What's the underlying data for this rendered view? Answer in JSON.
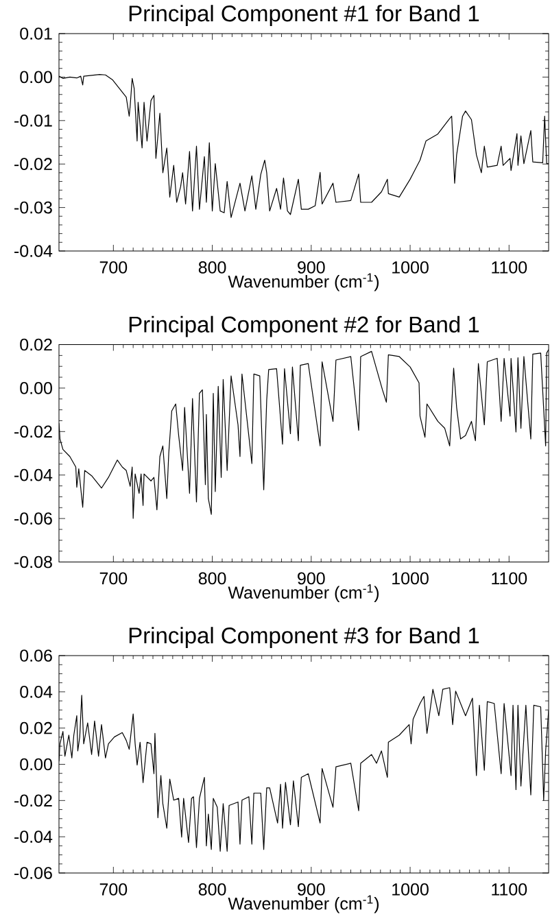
{
  "chart_data": [
    {
      "type": "line",
      "title": "Principal Component #1 for Band 1",
      "xlabel": "Wavenumber (cm$^{-1}$)",
      "color": "#000000",
      "xlim": [
        645,
        1140
      ],
      "ylim": [
        -0.04,
        0.01
      ],
      "xticks": [
        700,
        800,
        900,
        1000,
        1100
      ],
      "yticks": [
        {
          "value": -0.04,
          "label": "-0.04"
        },
        {
          "value": -0.03,
          "label": "-0.03"
        },
        {
          "value": -0.02,
          "label": "-0.02"
        },
        {
          "value": -0.01,
          "label": "-0.01"
        },
        {
          "value": 0,
          "label": "0.00"
        },
        {
          "value": 0.01,
          "label": "0.01"
        }
      ],
      "x": [
        645,
        649,
        656,
        663,
        667,
        669,
        670,
        678,
        686,
        692,
        699,
        706,
        713,
        716,
        717,
        719,
        721,
        724,
        725,
        729,
        731,
        734,
        738,
        741,
        743,
        747,
        750,
        754,
        757,
        761,
        764,
        768,
        770,
        773,
        777,
        780,
        784,
        787,
        792,
        794,
        797,
        800,
        803,
        808,
        812,
        815,
        819,
        828,
        833,
        840,
        844,
        849,
        853,
        855,
        858,
        865,
        869,
        872,
        876,
        879,
        887,
        890,
        897,
        904,
        909,
        911,
        922,
        925,
        940,
        948,
        950,
        961,
        971,
        977,
        978,
        989,
        1000,
        1010,
        1016,
        1028,
        1039,
        1042,
        1045,
        1047,
        1053,
        1056,
        1062,
        1067,
        1072,
        1075,
        1078,
        1088,
        1092,
        1094,
        1101,
        1102,
        1108,
        1109,
        1112,
        1115,
        1122,
        1124,
        1134,
        1136,
        1138,
        1140
      ],
      "values": [
        0.0002,
        -0.0003,
        0,
        -0.0002,
        0.0002,
        -0.0018,
        0.0002,
        0.0004,
        0.0006,
        0.0005,
        -0.0006,
        -0.0026,
        -0.0046,
        -0.009,
        -0.0066,
        -0.0003,
        -0.0026,
        -0.0147,
        -0.0058,
        -0.0163,
        -0.0058,
        -0.0147,
        -0.0054,
        -0.0042,
        -0.0187,
        -0.0083,
        -0.022,
        -0.0163,
        -0.0276,
        -0.0203,
        -0.0288,
        -0.0252,
        -0.022,
        -0.0292,
        -0.0171,
        -0.0308,
        -0.0159,
        -0.0304,
        -0.0183,
        -0.0288,
        -0.0151,
        -0.0308,
        -0.0199,
        -0.0308,
        -0.0312,
        -0.024,
        -0.0323,
        -0.0244,
        -0.0308,
        -0.0227,
        -0.0304,
        -0.0224,
        -0.0191,
        -0.022,
        -0.0308,
        -0.0256,
        -0.0304,
        -0.0232,
        -0.0308,
        -0.0316,
        -0.0235,
        -0.0304,
        -0.0304,
        -0.0296,
        -0.0219,
        -0.0292,
        -0.0244,
        -0.0288,
        -0.0284,
        -0.0223,
        -0.0288,
        -0.0288,
        -0.0264,
        -0.0235,
        -0.0268,
        -0.0276,
        -0.0235,
        -0.0191,
        -0.0147,
        -0.0131,
        -0.0098,
        -0.009,
        -0.0244,
        -0.0179,
        -0.009,
        -0.0078,
        -0.0098,
        -0.0179,
        -0.022,
        -0.0159,
        -0.0207,
        -0.0203,
        -0.0159,
        -0.0203,
        -0.0187,
        -0.0215,
        -0.013,
        -0.0203,
        -0.0135,
        -0.0199,
        -0.0123,
        -0.0195,
        -0.0197,
        -0.009,
        -0.0199,
        -0.0199
      ]
    },
    {
      "type": "line",
      "title": "Principal Component #2 for Band 1",
      "xlabel": "Wavenumber (cm$^{-1}$)",
      "color": "#000000",
      "xlim": [
        645,
        1140
      ],
      "ylim": [
        -0.08,
        0.02
      ],
      "xticks": [
        700,
        800,
        900,
        1000,
        1100
      ],
      "yticks": [
        {
          "value": -0.08,
          "label": "-0.08"
        },
        {
          "value": -0.06,
          "label": "-0.06"
        },
        {
          "value": -0.04,
          "label": "-0.04"
        },
        {
          "value": -0.02,
          "label": "-0.02"
        },
        {
          "value": 0,
          "label": "0.00"
        },
        {
          "value": 0.02,
          "label": "0.02"
        }
      ],
      "x": [
        645,
        646,
        649,
        656,
        662,
        663,
        665,
        669,
        671,
        678,
        688,
        695,
        704,
        709,
        713,
        717,
        719,
        720,
        722,
        726,
        728,
        730,
        731,
        738,
        741,
        744,
        747,
        750,
        754,
        756,
        759,
        763,
        766,
        770,
        772,
        777,
        780,
        784,
        787,
        790,
        793,
        794,
        796,
        799,
        801,
        803,
        806,
        809,
        811,
        815,
        819,
        826,
        828,
        830,
        840,
        842,
        848,
        852,
        855,
        857,
        865,
        871,
        873,
        879,
        881,
        887,
        889,
        897,
        909,
        911,
        922,
        925,
        940,
        948,
        950,
        961,
        972,
        976,
        978,
        989,
        1000,
        1009,
        1010,
        1015,
        1017,
        1028,
        1035,
        1040,
        1043,
        1044,
        1047,
        1051,
        1056,
        1062,
        1066,
        1069,
        1075,
        1078,
        1088,
        1092,
        1095,
        1101,
        1102,
        1107,
        1109,
        1112,
        1115,
        1122,
        1124,
        1132,
        1137,
        1138,
        1140
      ],
      "values": [
        -0.0161,
        -0.0234,
        -0.0282,
        -0.0315,
        -0.0363,
        -0.0456,
        -0.0371,
        -0.0548,
        -0.0379,
        -0.0403,
        -0.046,
        -0.0411,
        -0.0331,
        -0.0363,
        -0.0379,
        -0.0452,
        -0.0363,
        -0.06,
        -0.0395,
        -0.0484,
        -0.0395,
        -0.054,
        -0.0395,
        -0.0427,
        -0.0411,
        -0.056,
        -0.0315,
        -0.0266,
        -0.0508,
        -0.0298,
        -0.0105,
        -0.0073,
        -0.0218,
        -0.0379,
        -0.0089,
        -0.0484,
        -0.0048,
        -0.0524,
        -0.0024,
        -0.0008,
        -0.0444,
        -0.0121,
        -0.0508,
        -0.0581,
        -0.0024,
        -0.0476,
        0.0008,
        -0.0411,
        0.004,
        -0.0379,
        0.0056,
        -0.0169,
        -0.0315,
        0.0065,
        -0.0347,
        0.0065,
        0.0056,
        -0.0468,
        -0.0056,
        0.0085,
        0.0089,
        -0.0258,
        0.0089,
        -0.021,
        0.0097,
        -0.0242,
        0.0105,
        0.0113,
        -0.0266,
        0.0121,
        -0.0153,
        0.0129,
        0.0145,
        -0.0194,
        0.0145,
        0.0169,
        -0.0008,
        -0.0065,
        0.0153,
        0.0145,
        0.0097,
        0.0024,
        -0.0129,
        -0.0226,
        -0.0073,
        -0.0153,
        -0.0185,
        -0.0266,
        0.0008,
        0.0092,
        -0.0089,
        -0.0234,
        -0.0218,
        -0.0153,
        -0.0242,
        0.0113,
        -0.0169,
        0.0121,
        0.0137,
        -0.0153,
        0.0137,
        -0.0129,
        0.0137,
        -0.0202,
        0.014,
        -0.0185,
        0.0145,
        -0.0234,
        0.0156,
        0.0161,
        -0.0266,
        0.0161,
        0.0177
      ]
    },
    {
      "type": "line",
      "title": "Principal Component #3 for Band 1",
      "xlabel": "Wavenumber (cm$^{-1}$)",
      "color": "#000000",
      "xlim": [
        645,
        1140
      ],
      "ylim": [
        -0.06,
        0.06
      ],
      "xticks": [
        700,
        800,
        900,
        1000,
        1100
      ],
      "yticks": [
        {
          "value": -0.06,
          "label": "-0.06"
        },
        {
          "value": -0.04,
          "label": "-0.04"
        },
        {
          "value": -0.02,
          "label": "-0.02"
        },
        {
          "value": 0,
          "label": "0.00"
        },
        {
          "value": 0.02,
          "label": "0.02"
        },
        {
          "value": 0.04,
          "label": "0.04"
        },
        {
          "value": 0.06,
          "label": "0.06"
        }
      ],
      "x": [
        645,
        646,
        649,
        651,
        655,
        658,
        660,
        663,
        664,
        666,
        668,
        670,
        674,
        678,
        681,
        685,
        688,
        692,
        695,
        701,
        709,
        713,
        716,
        720,
        722,
        724,
        727,
        730,
        734,
        738,
        741,
        742,
        745,
        748,
        750,
        754,
        757,
        761,
        766,
        769,
        771,
        776,
        779,
        781,
        784,
        787,
        792,
        794,
        796,
        799,
        801,
        805,
        808,
        811,
        815,
        817,
        826,
        828,
        830,
        837,
        840,
        842,
        849,
        852,
        855,
        858,
        866,
        869,
        871,
        874,
        879,
        882,
        887,
        890,
        897,
        909,
        911,
        922,
        925,
        940,
        948,
        950,
        961,
        966,
        971,
        977,
        978,
        989,
        999,
        1001,
        1003,
        1010,
        1014,
        1017,
        1023,
        1029,
        1033,
        1040,
        1043,
        1046,
        1056,
        1063,
        1067,
        1070,
        1075,
        1078,
        1085,
        1092,
        1095,
        1102,
        1104,
        1107,
        1109,
        1112,
        1117,
        1122,
        1125,
        1132,
        1135,
        1137,
        1140
      ],
      "values": [
        0.0016,
        0.0113,
        0.0181,
        0.0045,
        0.0161,
        0.0035,
        0.0161,
        0.0268,
        0.0074,
        0.0151,
        0.0381,
        0.0113,
        0.0229,
        0.0054,
        0.0239,
        0.0045,
        0.0219,
        0.0035,
        0.0113,
        0.0151,
        0.0175,
        0.0132,
        0.0083,
        0.0278,
        0.0113,
        -0.0004,
        0.0122,
        -0.0101,
        0.0122,
        0.0113,
        -0.0052,
        0.0171,
        -0.0295,
        -0.0062,
        -0.0217,
        -0.0353,
        -0.0082,
        -0.0198,
        -0.0188,
        -0.0402,
        -0.0188,
        -0.0431,
        -0.0188,
        -0.0179,
        -0.046,
        -0.0188,
        -0.0072,
        -0.045,
        -0.0275,
        -0.047,
        -0.0188,
        -0.0237,
        -0.048,
        -0.0217,
        -0.048,
        -0.0227,
        -0.0208,
        -0.0441,
        -0.0198,
        -0.0179,
        -0.0441,
        -0.0159,
        -0.0159,
        -0.047,
        -0.013,
        -0.013,
        -0.0324,
        -0.011,
        -0.0353,
        -0.01,
        -0.0334,
        -0.0091,
        -0.0344,
        -0.0072,
        -0.0052,
        -0.0324,
        -0.0023,
        -0.0237,
        -0.0014,
        0.0006,
        -0.0256,
        0.0006,
        0.0054,
        0.0006,
        0.0074,
        -0.0072,
        0.0122,
        0.0161,
        0.0219,
        0.0113,
        0.0249,
        0.0336,
        0.0375,
        0.0171,
        0.0414,
        0.0268,
        0.0414,
        0.0423,
        0.0219,
        0.0404,
        0.0268,
        0.0365,
        -0.0062,
        0.0326,
        -0.0033,
        0.0346,
        0.0336,
        -0.0052,
        0.0336,
        -0.0062,
        0.0326,
        -0.014,
        0.0326,
        -0.012,
        0.0326,
        -0.0169,
        0.0326,
        0.0317,
        -0.0198,
        0.0074,
        0.0297
      ]
    }
  ]
}
